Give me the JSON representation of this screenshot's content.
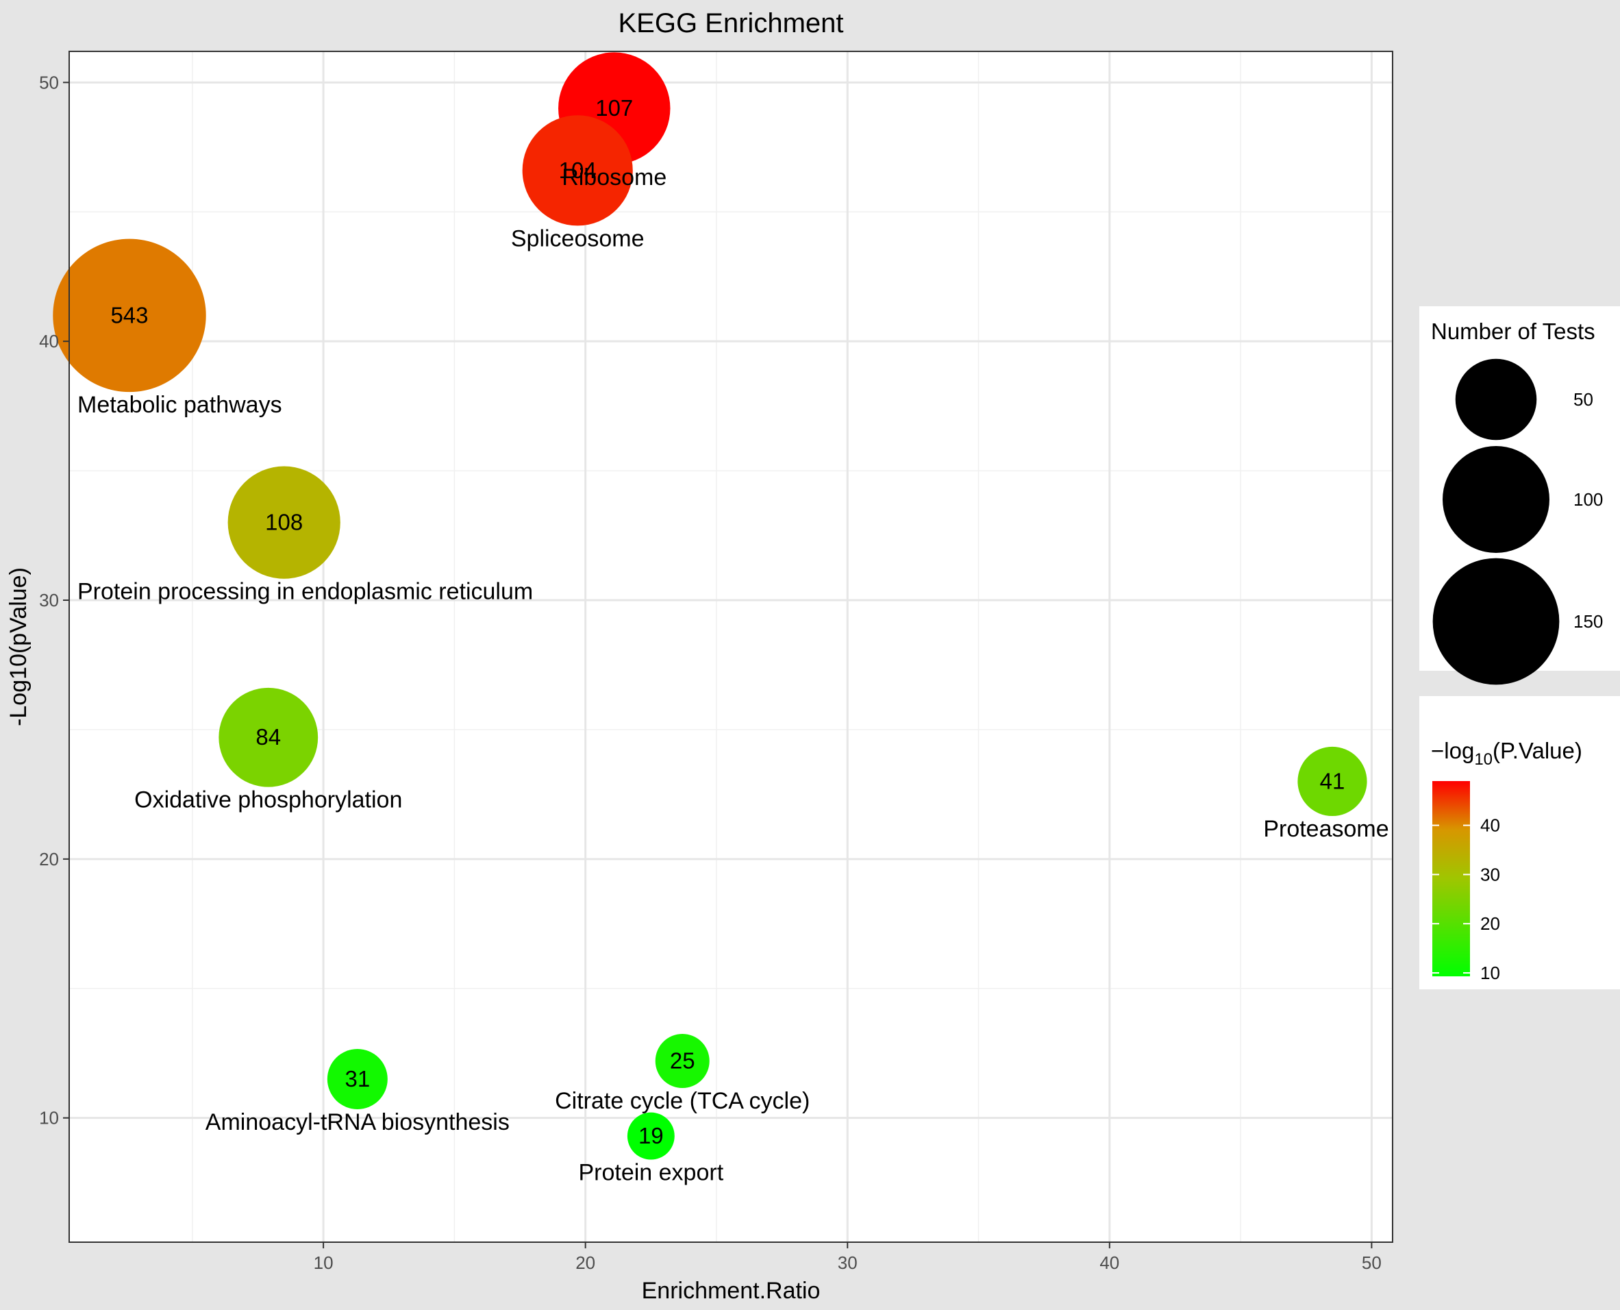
{
  "chart_data": {
    "type": "scatter",
    "title": "KEGG Enrichment",
    "xlabel": "Enrichment.Ratio",
    "ylabel": "-Log10(pValue)",
    "xlim": [
      0.3,
      50.8
    ],
    "ylim": [
      5.2,
      51.2
    ],
    "x_ticks": [
      10,
      20,
      30,
      40,
      50
    ],
    "y_ticks": [
      10,
      20,
      30,
      40,
      50
    ],
    "grid": true,
    "points": [
      {
        "name": "Ribosome",
        "x": 21.1,
        "y": 49.0,
        "size": 107,
        "label": "107",
        "color_value": 49.0
      },
      {
        "name": "Spliceosome",
        "x": 19.7,
        "y": 46.6,
        "size": 104,
        "label": "104",
        "color_value": 46.6
      },
      {
        "name": "Metabolic pathways",
        "x": 2.6,
        "y": 41.0,
        "size": 543,
        "label": "543",
        "color_value": 41.0
      },
      {
        "name": "Protein processing in endoplasmic reticulum",
        "x": 8.5,
        "y": 33.0,
        "size": 108,
        "label": "108",
        "color_value": 33.0
      },
      {
        "name": "Oxidative phosphorylation",
        "x": 7.9,
        "y": 24.7,
        "size": 84,
        "label": "84",
        "color_value": 24.7
      },
      {
        "name": "Proteasome",
        "x": 48.5,
        "y": 23.0,
        "size": 41,
        "label": "41",
        "color_value": 23.0
      },
      {
        "name": "Citrate cycle (TCA cycle)",
        "x": 23.7,
        "y": 12.2,
        "size": 25,
        "label": "25",
        "color_value": 12.2
      },
      {
        "name": "Aminoacyl-tRNA biosynthesis",
        "x": 11.3,
        "y": 11.5,
        "size": 31,
        "label": "31",
        "color_value": 11.5
      },
      {
        "name": "Protein export",
        "x": 22.5,
        "y": 9.3,
        "size": 19,
        "label": "19",
        "color_value": 9.3
      }
    ],
    "size_legend": {
      "title": "Number of Tests",
      "entries": [
        {
          "label": "50",
          "value": 50
        },
        {
          "label": "100",
          "value": 100
        },
        {
          "label": "150",
          "value": 150
        }
      ]
    },
    "color_legend": {
      "title_prefix": "−log",
      "title_sub": "10",
      "title_suffix": "(P.Value)",
      "range": [
        9.3,
        49.0
      ],
      "ticks": [
        {
          "label": "40",
          "value": 40
        },
        {
          "label": "30",
          "value": 30
        },
        {
          "label": "20",
          "value": 20
        },
        {
          "label": "10",
          "value": 10
        }
      ],
      "low_color": "#00ff00",
      "high_color": "#ff0000"
    }
  }
}
